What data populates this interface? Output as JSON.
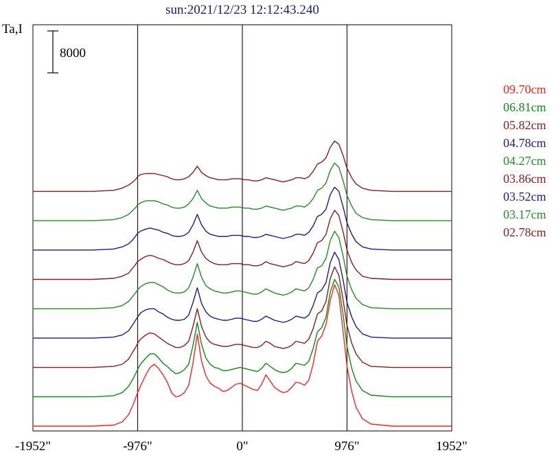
{
  "chart_data": {
    "type": "line",
    "title": "sun:2021/12/23 12:12:43.240",
    "ylabel": "Ta,I",
    "scale_bar_label": "8000",
    "xlim": [
      -2000,
      2000
    ],
    "x_ticks": [
      {
        "value": -1952,
        "label": "-1952\""
      },
      {
        "value": -976,
        "label": "-976\""
      },
      {
        "value": 0,
        "label": "0\""
      },
      {
        "value": 976,
        "label": "976\""
      },
      {
        "value": 1952,
        "label": "1952\""
      }
    ],
    "vertical_lines": [
      -976,
      0,
      976
    ],
    "x": [
      -2000,
      -1400,
      -1200,
      -1120,
      -1060,
      -1020,
      -990,
      -976,
      -950,
      -900,
      -860,
      -820,
      -780,
      -740,
      -700,
      -660,
      -620,
      -580,
      -540,
      -500,
      -460,
      -420,
      -380,
      -340,
      -300,
      -260,
      -220,
      -180,
      -140,
      -100,
      -60,
      -20,
      20,
      60,
      100,
      140,
      180,
      220,
      260,
      300,
      340,
      380,
      420,
      460,
      500,
      540,
      580,
      620,
      660,
      700,
      740,
      780,
      820,
      860,
      900,
      940,
      976,
      1020,
      1060,
      1120,
      1200,
      1400,
      2000
    ],
    "series": [
      {
        "name": "09.70cm",
        "color": "#ff2020",
        "offset": 0,
        "values": [
          0,
          0,
          200,
          800,
          2200,
          4000,
          5600,
          6400,
          7600,
          9800,
          11200,
          11800,
          11000,
          9800,
          8400,
          6400,
          5600,
          5800,
          6400,
          7800,
          12000,
          17600,
          12400,
          9600,
          8200,
          7600,
          7200,
          6600,
          6800,
          7400,
          8000,
          8200,
          7800,
          7400,
          7000,
          6800,
          8000,
          9800,
          8600,
          7400,
          6800,
          6400,
          6600,
          7400,
          8400,
          8200,
          7800,
          8800,
          11800,
          16200,
          17200,
          19400,
          24000,
          27000,
          25000,
          18000,
          11400,
          6600,
          3600,
          1400,
          400,
          0,
          0
        ]
      },
      {
        "name": "06.81cm",
        "color": "#118811",
        "offset": 5600,
        "values": [
          0,
          0,
          200,
          800,
          2000,
          3400,
          4600,
          5200,
          6200,
          7400,
          8200,
          8200,
          7400,
          6400,
          5800,
          5000,
          4400,
          4600,
          5200,
          6200,
          9800,
          14200,
          10000,
          7400,
          6200,
          5600,
          5400,
          5000,
          5000,
          5200,
          5400,
          5600,
          5400,
          5200,
          5000,
          4800,
          5400,
          6400,
          5800,
          5200,
          4800,
          4600,
          4800,
          5400,
          6400,
          6200,
          6000,
          6800,
          9200,
          12400,
          13200,
          15200,
          20000,
          22400,
          21000,
          15600,
          9600,
          5400,
          3000,
          1200,
          300,
          0,
          0
        ]
      },
      {
        "name": "05.82cm",
        "color": "#8b1a1a",
        "offset": 11200,
        "values": [
          0,
          0,
          200,
          600,
          1600,
          3000,
          4000,
          4600,
          5400,
          6200,
          6600,
          6400,
          5800,
          5200,
          4600,
          4200,
          3800,
          3800,
          4200,
          5000,
          7800,
          11200,
          7800,
          5800,
          4800,
          4400,
          4200,
          4000,
          4000,
          4200,
          4400,
          4400,
          4200,
          4000,
          3800,
          3800,
          4200,
          5000,
          4600,
          4000,
          3800,
          3600,
          3800,
          4200,
          5000,
          4800,
          4600,
          5400,
          7400,
          10200,
          10800,
          12600,
          17000,
          19200,
          17600,
          12800,
          8000,
          4600,
          2600,
          1000,
          200,
          0,
          0
        ]
      },
      {
        "name": "04.78cm",
        "color": "#1a1a8c",
        "offset": 16800,
        "values": [
          0,
          0,
          200,
          600,
          1400,
          2600,
          3600,
          4000,
          4800,
          5400,
          5600,
          5600,
          5000,
          4600,
          4000,
          3600,
          3400,
          3400,
          3600,
          4400,
          6800,
          9600,
          6600,
          5000,
          4200,
          3800,
          3600,
          3400,
          3400,
          3600,
          3800,
          3800,
          3600,
          3400,
          3200,
          3200,
          3600,
          4200,
          3800,
          3400,
          3200,
          3000,
          3200,
          3600,
          4200,
          4000,
          3800,
          4400,
          6200,
          8600,
          9200,
          10600,
          14400,
          16400,
          15000,
          11000,
          6800,
          4000,
          2200,
          800,
          200,
          0,
          0
        ]
      },
      {
        "name": "04.27cm",
        "color": "#228b22",
        "offset": 22400,
        "values": [
          0,
          0,
          200,
          600,
          1400,
          2400,
          3200,
          3600,
          4200,
          4800,
          5000,
          5000,
          4600,
          4200,
          3600,
          3200,
          3000,
          3000,
          3200,
          4000,
          6000,
          8600,
          6000,
          4400,
          3800,
          3400,
          3200,
          3000,
          3000,
          3200,
          3400,
          3400,
          3200,
          3000,
          2800,
          2800,
          3200,
          3800,
          3400,
          3000,
          2800,
          2600,
          2800,
          3200,
          3800,
          3600,
          3400,
          4000,
          5600,
          7800,
          8200,
          9600,
          13000,
          14800,
          13600,
          10000,
          6200,
          3600,
          2000,
          800,
          200,
          0,
          0
        ]
      },
      {
        "name": "03.86cm",
        "color": "#8b1a1a",
        "offset": 28000,
        "values": [
          0,
          0,
          200,
          600,
          1200,
          2200,
          3000,
          3400,
          3800,
          4400,
          4600,
          4400,
          4000,
          3800,
          3400,
          3000,
          2800,
          2800,
          3000,
          3600,
          5200,
          7400,
          5200,
          4000,
          3400,
          3000,
          2800,
          2800,
          2800,
          3000,
          3000,
          3000,
          2800,
          2800,
          2600,
          2600,
          2800,
          3400,
          3000,
          2800,
          2600,
          2400,
          2600,
          2800,
          3400,
          3200,
          3000,
          3600,
          5000,
          7000,
          7400,
          8600,
          11600,
          13200,
          12200,
          9000,
          5600,
          3200,
          1800,
          600,
          200,
          0,
          0
        ]
      },
      {
        "name": "03.52cm",
        "color": "#1a1a8c",
        "offset": 33600,
        "values": [
          0,
          0,
          200,
          600,
          1200,
          2000,
          2800,
          3200,
          3600,
          4000,
          4200,
          4000,
          3800,
          3400,
          3200,
          2800,
          2600,
          2600,
          2800,
          3400,
          4800,
          6800,
          4800,
          3600,
          3000,
          2800,
          2600,
          2600,
          2600,
          2800,
          2800,
          2800,
          2600,
          2600,
          2400,
          2400,
          2600,
          3000,
          2800,
          2600,
          2400,
          2200,
          2400,
          2600,
          3000,
          3000,
          2800,
          3400,
          4600,
          6400,
          6800,
          7800,
          10600,
          12000,
          11200,
          8200,
          5200,
          3000,
          1600,
          600,
          200,
          0,
          0
        ]
      },
      {
        "name": "03.17cm",
        "color": "#228b22",
        "offset": 39200,
        "values": [
          0,
          0,
          200,
          600,
          1200,
          2000,
          2600,
          3000,
          3400,
          3800,
          3800,
          3800,
          3600,
          3200,
          3000,
          2600,
          2400,
          2400,
          2600,
          3200,
          4200,
          5800,
          4200,
          3400,
          2800,
          2600,
          2400,
          2400,
          2400,
          2600,
          2600,
          2600,
          2400,
          2400,
          2200,
          2200,
          2400,
          2800,
          2600,
          2400,
          2200,
          2000,
          2200,
          2400,
          2800,
          2800,
          2600,
          3200,
          4200,
          5800,
          6200,
          7200,
          9600,
          11000,
          10200,
          7600,
          4800,
          2800,
          1400,
          600,
          200,
          0,
          0
        ]
      },
      {
        "name": "02.78cm",
        "color": "#8b1a1a",
        "offset": 44800,
        "values": [
          0,
          0,
          200,
          600,
          1200,
          1800,
          2400,
          2800,
          3200,
          3400,
          3400,
          3400,
          3200,
          3000,
          2800,
          2400,
          2200,
          2200,
          2400,
          2800,
          3600,
          4800,
          3600,
          3000,
          2600,
          2400,
          2200,
          2200,
          2200,
          2400,
          2400,
          2400,
          2200,
          2200,
          2000,
          2000,
          2200,
          2600,
          2400,
          2200,
          2000,
          1800,
          2000,
          2200,
          2600,
          2600,
          2400,
          2800,
          3800,
          5200,
          5600,
          6400,
          8400,
          9600,
          9000,
          6800,
          4400,
          2600,
          1400,
          600,
          200,
          0,
          0
        ]
      }
    ]
  }
}
